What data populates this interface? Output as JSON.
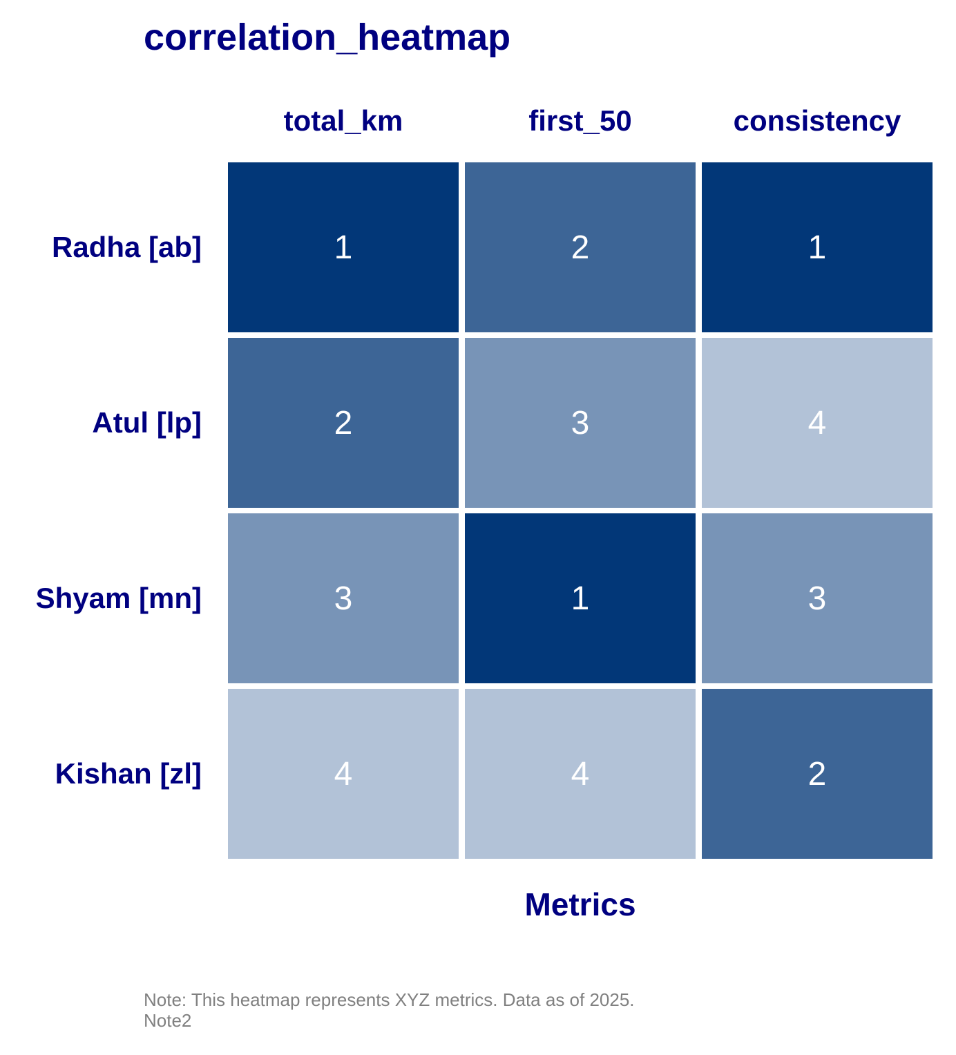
{
  "colors": {
    "text": "#000080",
    "note": "#808080",
    "cell_text": "#ffffff",
    "scale": {
      "1": "#023778",
      "2": "#3d6596",
      "3": "#7894b7",
      "4": "#b2c2d7"
    }
  },
  "chart_data": {
    "type": "heatmap",
    "title": "correlation_heatmap",
    "xlabel": "Metrics",
    "ylabel": "",
    "columns": [
      "total_km",
      "first_50",
      "consistency"
    ],
    "rows": [
      "Radha [ab]",
      "Atul [lp]",
      "Shyam [mn]",
      "Kishan [zl]"
    ],
    "values": [
      [
        1,
        2,
        1
      ],
      [
        2,
        3,
        4
      ],
      [
        3,
        1,
        3
      ],
      [
        4,
        4,
        2
      ]
    ],
    "notes": [
      "Note: This heatmap represents XYZ metrics. Data as of 2025.",
      "Note2"
    ]
  }
}
